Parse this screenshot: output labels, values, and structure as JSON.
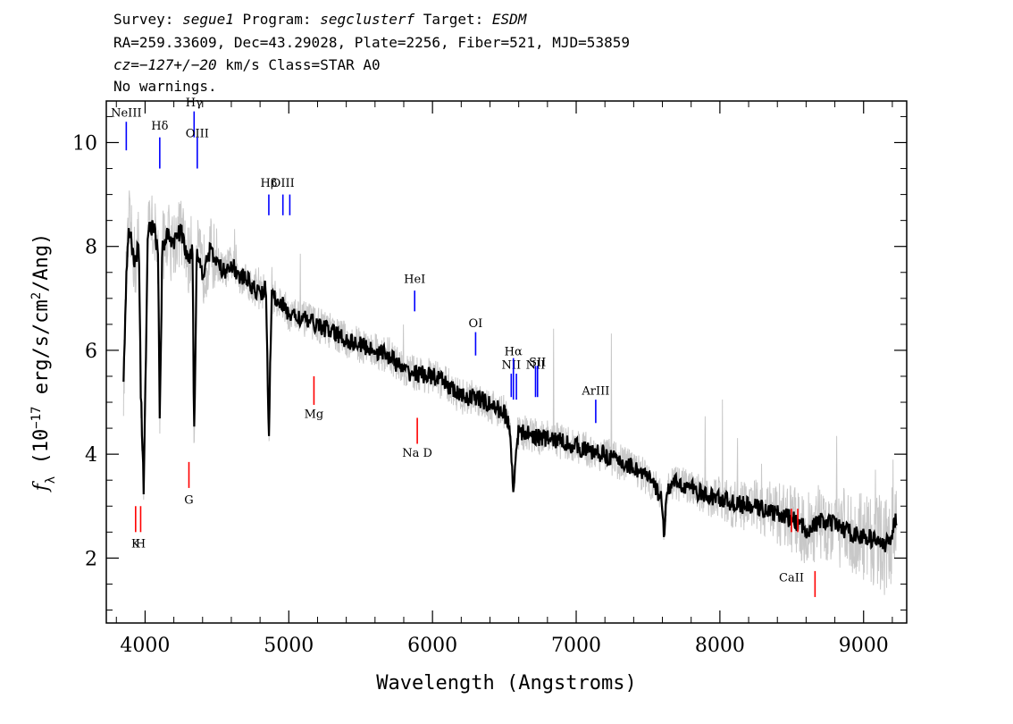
{
  "header": {
    "line1": {
      "survey_label": "Survey: ",
      "survey": "segue1",
      "program_label": " Program: ",
      "program": "segclusterf",
      "target_label": " Target: ",
      "target": "ESDM"
    },
    "line2": "RA=259.33609, Dec=43.29028, Plate=2256, Fiber=521, MJD=53859",
    "line3": {
      "cz": "cz=−127+/−20",
      "rest": " km/s Class=STAR A0"
    },
    "line4": "No warnings."
  },
  "chart_data": {
    "type": "line",
    "xlabel": "Wavelength (Angstroms)",
    "ylabel": "f_λ (10^-17 erg/s/cm^2/Ang)",
    "xlim": [
      3730,
      9300
    ],
    "ylim": [
      0.75,
      10.8
    ],
    "xticks": [
      4000,
      5000,
      6000,
      7000,
      8000,
      9000
    ],
    "yticks": [
      2,
      4,
      6,
      8,
      10
    ],
    "series": [
      {
        "role": "smoothed",
        "color": "#000000",
        "x": [
          3850,
          3870,
          3890,
          3910,
          3935,
          3955,
          3970,
          3990,
          4020,
          4060,
          4090,
          4102,
          4120,
          4150,
          4200,
          4250,
          4300,
          4330,
          4341,
          4360,
          4400,
          4450,
          4500,
          4550,
          4600,
          4650,
          4700,
          4750,
          4800,
          4840,
          4861,
          4880,
          4920,
          5000,
          5100,
          5200,
          5300,
          5400,
          5500,
          5600,
          5700,
          5800,
          5900,
          6000,
          6100,
          6200,
          6300,
          6400,
          6500,
          6540,
          6563,
          6590,
          6650,
          6700,
          6800,
          6900,
          7000,
          7100,
          7200,
          7300,
          7400,
          7500,
          7590,
          7610,
          7640,
          7700,
          7800,
          7900,
          8000,
          8100,
          8200,
          8300,
          8400,
          8500,
          8600,
          8700,
          8800,
          8900,
          9000,
          9100,
          9150,
          9200,
          9230
        ],
        "values": [
          5.3,
          7.5,
          8.4,
          8.0,
          7.6,
          8.2,
          5.2,
          3.35,
          8.3,
          8.4,
          7.9,
          4.65,
          8.0,
          8.2,
          8.1,
          8.3,
          7.7,
          8.0,
          4.3,
          7.9,
          7.5,
          7.9,
          7.7,
          7.5,
          7.7,
          7.4,
          7.4,
          7.2,
          7.1,
          7.2,
          4.35,
          7.0,
          7.0,
          6.7,
          6.6,
          6.5,
          6.35,
          6.2,
          6.1,
          6.0,
          5.9,
          5.6,
          5.55,
          5.5,
          5.35,
          5.1,
          5.1,
          4.95,
          4.8,
          4.5,
          3.25,
          4.4,
          4.4,
          4.35,
          4.3,
          4.25,
          4.15,
          4.05,
          4.0,
          3.85,
          3.75,
          3.55,
          3.2,
          2.5,
          3.35,
          3.45,
          3.35,
          3.2,
          3.15,
          3.05,
          3.0,
          2.95,
          2.85,
          2.75,
          2.55,
          2.7,
          2.65,
          2.5,
          2.4,
          2.35,
          2.2,
          2.5,
          2.8
        ]
      }
    ],
    "emission_lines": [
      {
        "label": "NeIII",
        "x": 3869,
        "y0": 9.85,
        "y1": 10.4,
        "label_y": 10.5
      },
      {
        "label": "Hδ",
        "x": 4102,
        "y0": 9.5,
        "y1": 10.1,
        "label_y": 10.25
      },
      {
        "label": "Hγ",
        "x": 4341,
        "y0": 10.1,
        "y1": 10.6,
        "label_y": 10.7
      },
      {
        "label": "OIII",
        "x": 4363,
        "y0": 9.5,
        "y1": 10.1,
        "label_y": 10.1
      },
      {
        "label": "Hβ",
        "x": 4861,
        "y0": 8.6,
        "y1": 9.0,
        "label_y": 9.15
      },
      {
        "label": "OIII",
        "x": 4959,
        "y0": 8.6,
        "y1": 9.0,
        "label_y": 9.15
      },
      {
        "label": "",
        "x": 5007,
        "y0": 8.6,
        "y1": 9.0,
        "label_y": 9.15
      },
      {
        "label": "HeI",
        "x": 5876,
        "y0": 6.75,
        "y1": 7.15,
        "label_y": 7.3
      },
      {
        "label": "OI",
        "x": 6300,
        "y0": 5.9,
        "y1": 6.35,
        "label_y": 6.45
      },
      {
        "label": "NII",
        "x": 6548,
        "y0": 5.1,
        "y1": 5.55,
        "label_y": 5.65
      },
      {
        "label": "Hα",
        "x": 6563,
        "y0": 5.05,
        "y1": 5.85,
        "label_y": 5.9
      },
      {
        "label": "",
        "x": 6584,
        "y0": 5.05,
        "y1": 5.55,
        "label_y": 5.65
      },
      {
        "label": "NII",
        "x": 6717,
        "y0": 5.1,
        "y1": 5.7,
        "label_y": 5.65
      },
      {
        "label": "SII",
        "x": 6731,
        "y0": 5.1,
        "y1": 5.7,
        "label_y": 5.7
      },
      {
        "label": "ArIII",
        "x": 7136,
        "y0": 4.6,
        "y1": 5.05,
        "label_y": 5.15
      }
    ],
    "absorption_lines": [
      {
        "label": "K",
        "x": 3934,
        "y0": 2.5,
        "y1": 3.0,
        "label_y": 2.2
      },
      {
        "label": "H",
        "x": 3969,
        "y0": 2.5,
        "y1": 3.0,
        "label_y": 2.2
      },
      {
        "label": "G",
        "x": 4305,
        "y0": 3.35,
        "y1": 3.85,
        "label_y": 3.05
      },
      {
        "label": "Mg",
        "x": 5175,
        "y0": 4.95,
        "y1": 5.5,
        "label_y": 4.7
      },
      {
        "label": "Na D",
        "x": 5894,
        "y0": 4.2,
        "y1": 4.7,
        "label_y": 3.95
      },
      {
        "label": "CaII",
        "x": 8498,
        "y0": 2.5,
        "y1": 2.95,
        "label_y": 1.55
      },
      {
        "label": "",
        "x": 8542,
        "y0": 2.5,
        "y1": 2.95,
        "label_y": 1.55
      },
      {
        "label": "",
        "x": 8662,
        "y0": 1.25,
        "y1": 1.75,
        "label_y": 1.55
      }
    ],
    "colors": {
      "raw": "#c8c8c8",
      "smoothed": "#000000",
      "emission": "#0000ff",
      "absorption": "#ff0000"
    }
  }
}
